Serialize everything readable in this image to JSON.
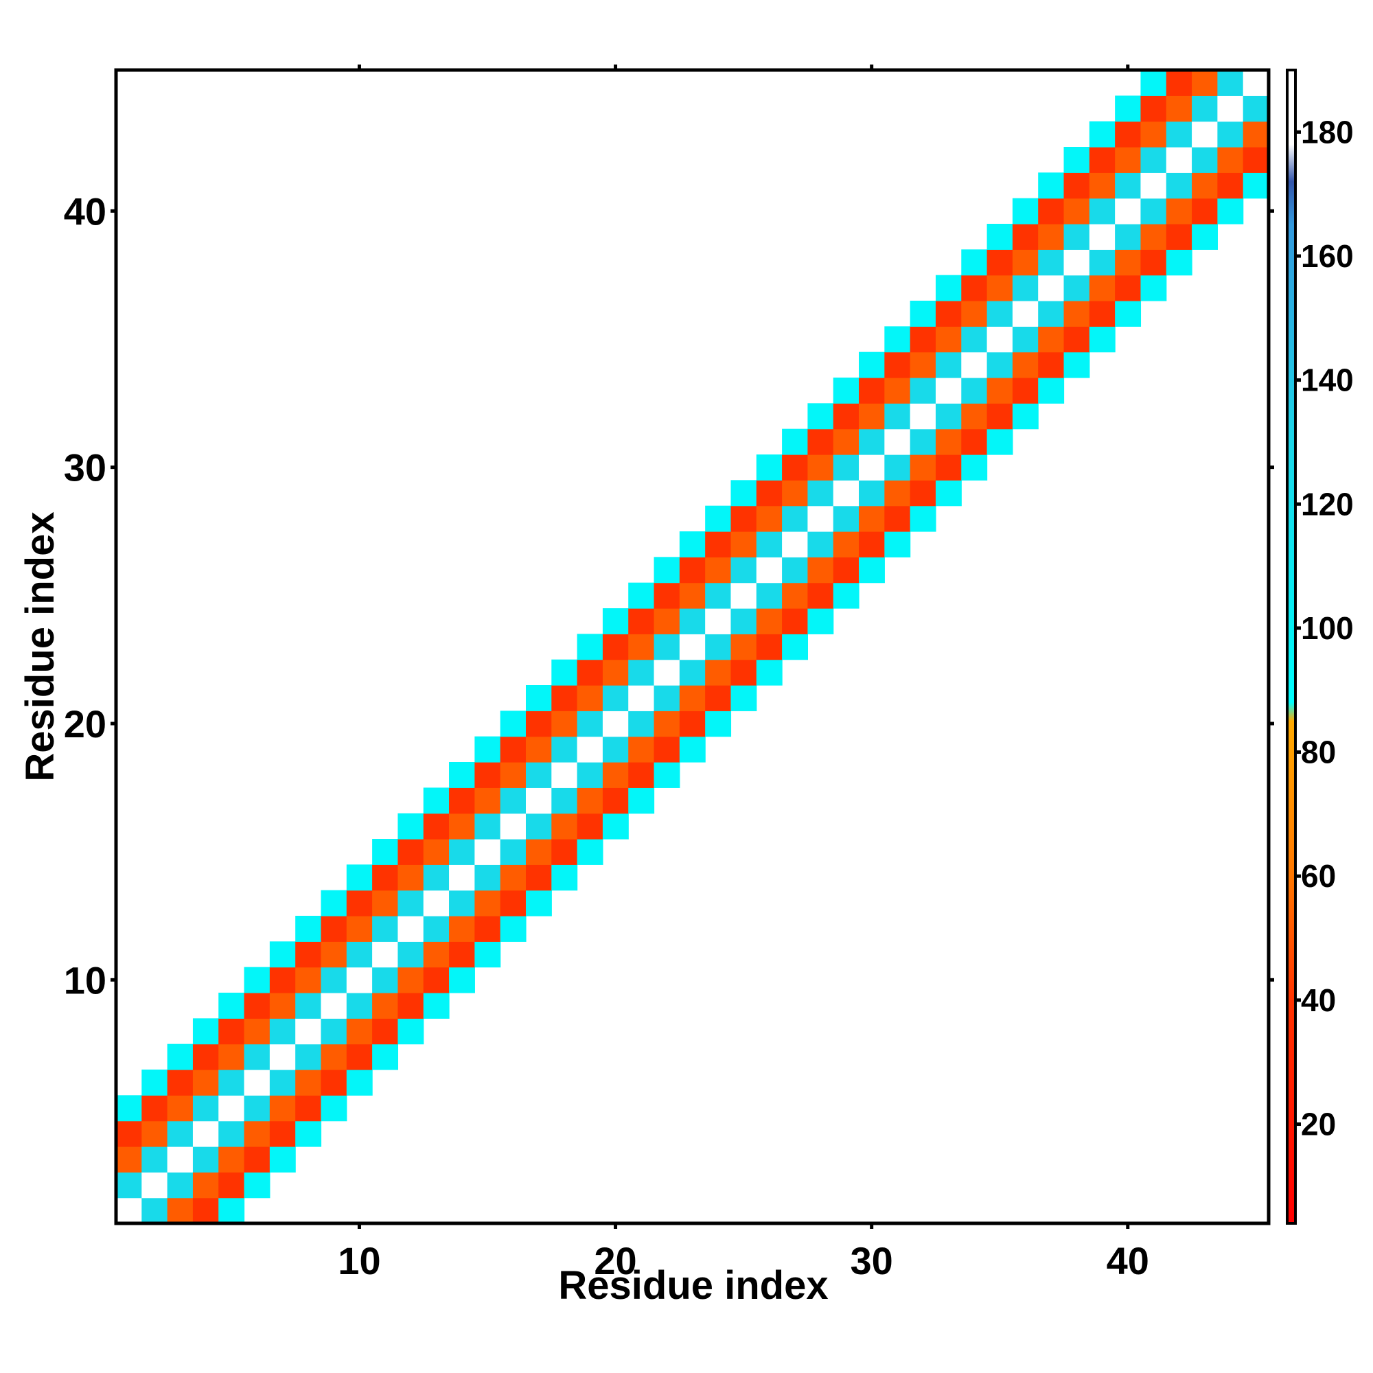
{
  "chart_data": {
    "type": "heatmap",
    "title": "",
    "xlabel": "Residue index",
    "ylabel": "Residue index",
    "xlim": [
      0.5,
      45.5
    ],
    "ylim": [
      0.5,
      45.5
    ],
    "x_ticks": [
      10,
      20,
      30,
      40
    ],
    "y_ticks": [
      10,
      20,
      30,
      40
    ],
    "colorbar": {
      "range": [
        4,
        190
      ],
      "ticks": [
        20,
        40,
        60,
        80,
        100,
        120,
        140,
        160,
        180
      ],
      "stops": [
        {
          "value": 4,
          "color": "#ff0000"
        },
        {
          "value": 40,
          "color": "#ff3300"
        },
        {
          "value": 60,
          "color": "#ff7700"
        },
        {
          "value": 85,
          "color": "#ffaa00"
        },
        {
          "value": 88,
          "color": "#00ffff"
        },
        {
          "value": 100,
          "color": "#05f0f5"
        },
        {
          "value": 130,
          "color": "#1cd6e8"
        },
        {
          "value": 165,
          "color": "#3399dd"
        },
        {
          "value": 172,
          "color": "#3355aa"
        },
        {
          "value": 178,
          "color": "#ffffff"
        },
        {
          "value": 190,
          "color": "#ffffff"
        }
      ]
    },
    "cell_value_by_diagonal_offset": {
      "0": 182,
      "1": 125,
      "2": 52,
      "3": 40,
      "4": 95
    },
    "diagonal_band_width": 4,
    "grid": false,
    "legend": "colorbar right"
  }
}
